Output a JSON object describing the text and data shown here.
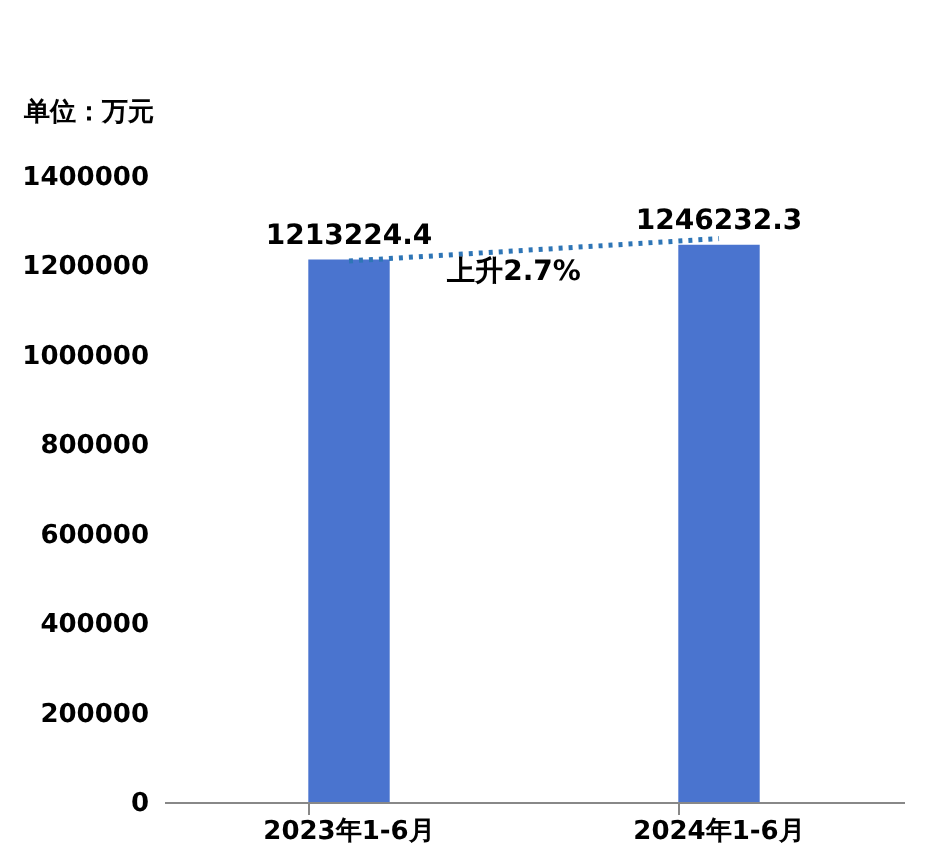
{
  "chart_data": {
    "type": "bar",
    "ylabel": "单位：万元",
    "categories": [
      "2023年1-6月",
      "2024年1-6月"
    ],
    "series": [
      {
        "color": "#4a74cf",
        "values": [
          1213224.4,
          1246232.3
        ],
        "value_labels": [
          "1213224.4",
          "1246232.3"
        ]
      },
      {
        "type": "line",
        "color": "#2e75b6",
        "line_style": "dotted",
        "x": [
          "2023年1-6月",
          "2024年1-6月"
        ],
        "values": [
          1210000,
          1260000
        ]
      }
    ],
    "annotations": [
      "上升2.7%"
    ],
    "ylim": [
      0,
      1400000
    ],
    "yticks": [
      0,
      200000,
      400000,
      600000,
      800000,
      1000000,
      1200000,
      1400000
    ],
    "grid": false
  }
}
